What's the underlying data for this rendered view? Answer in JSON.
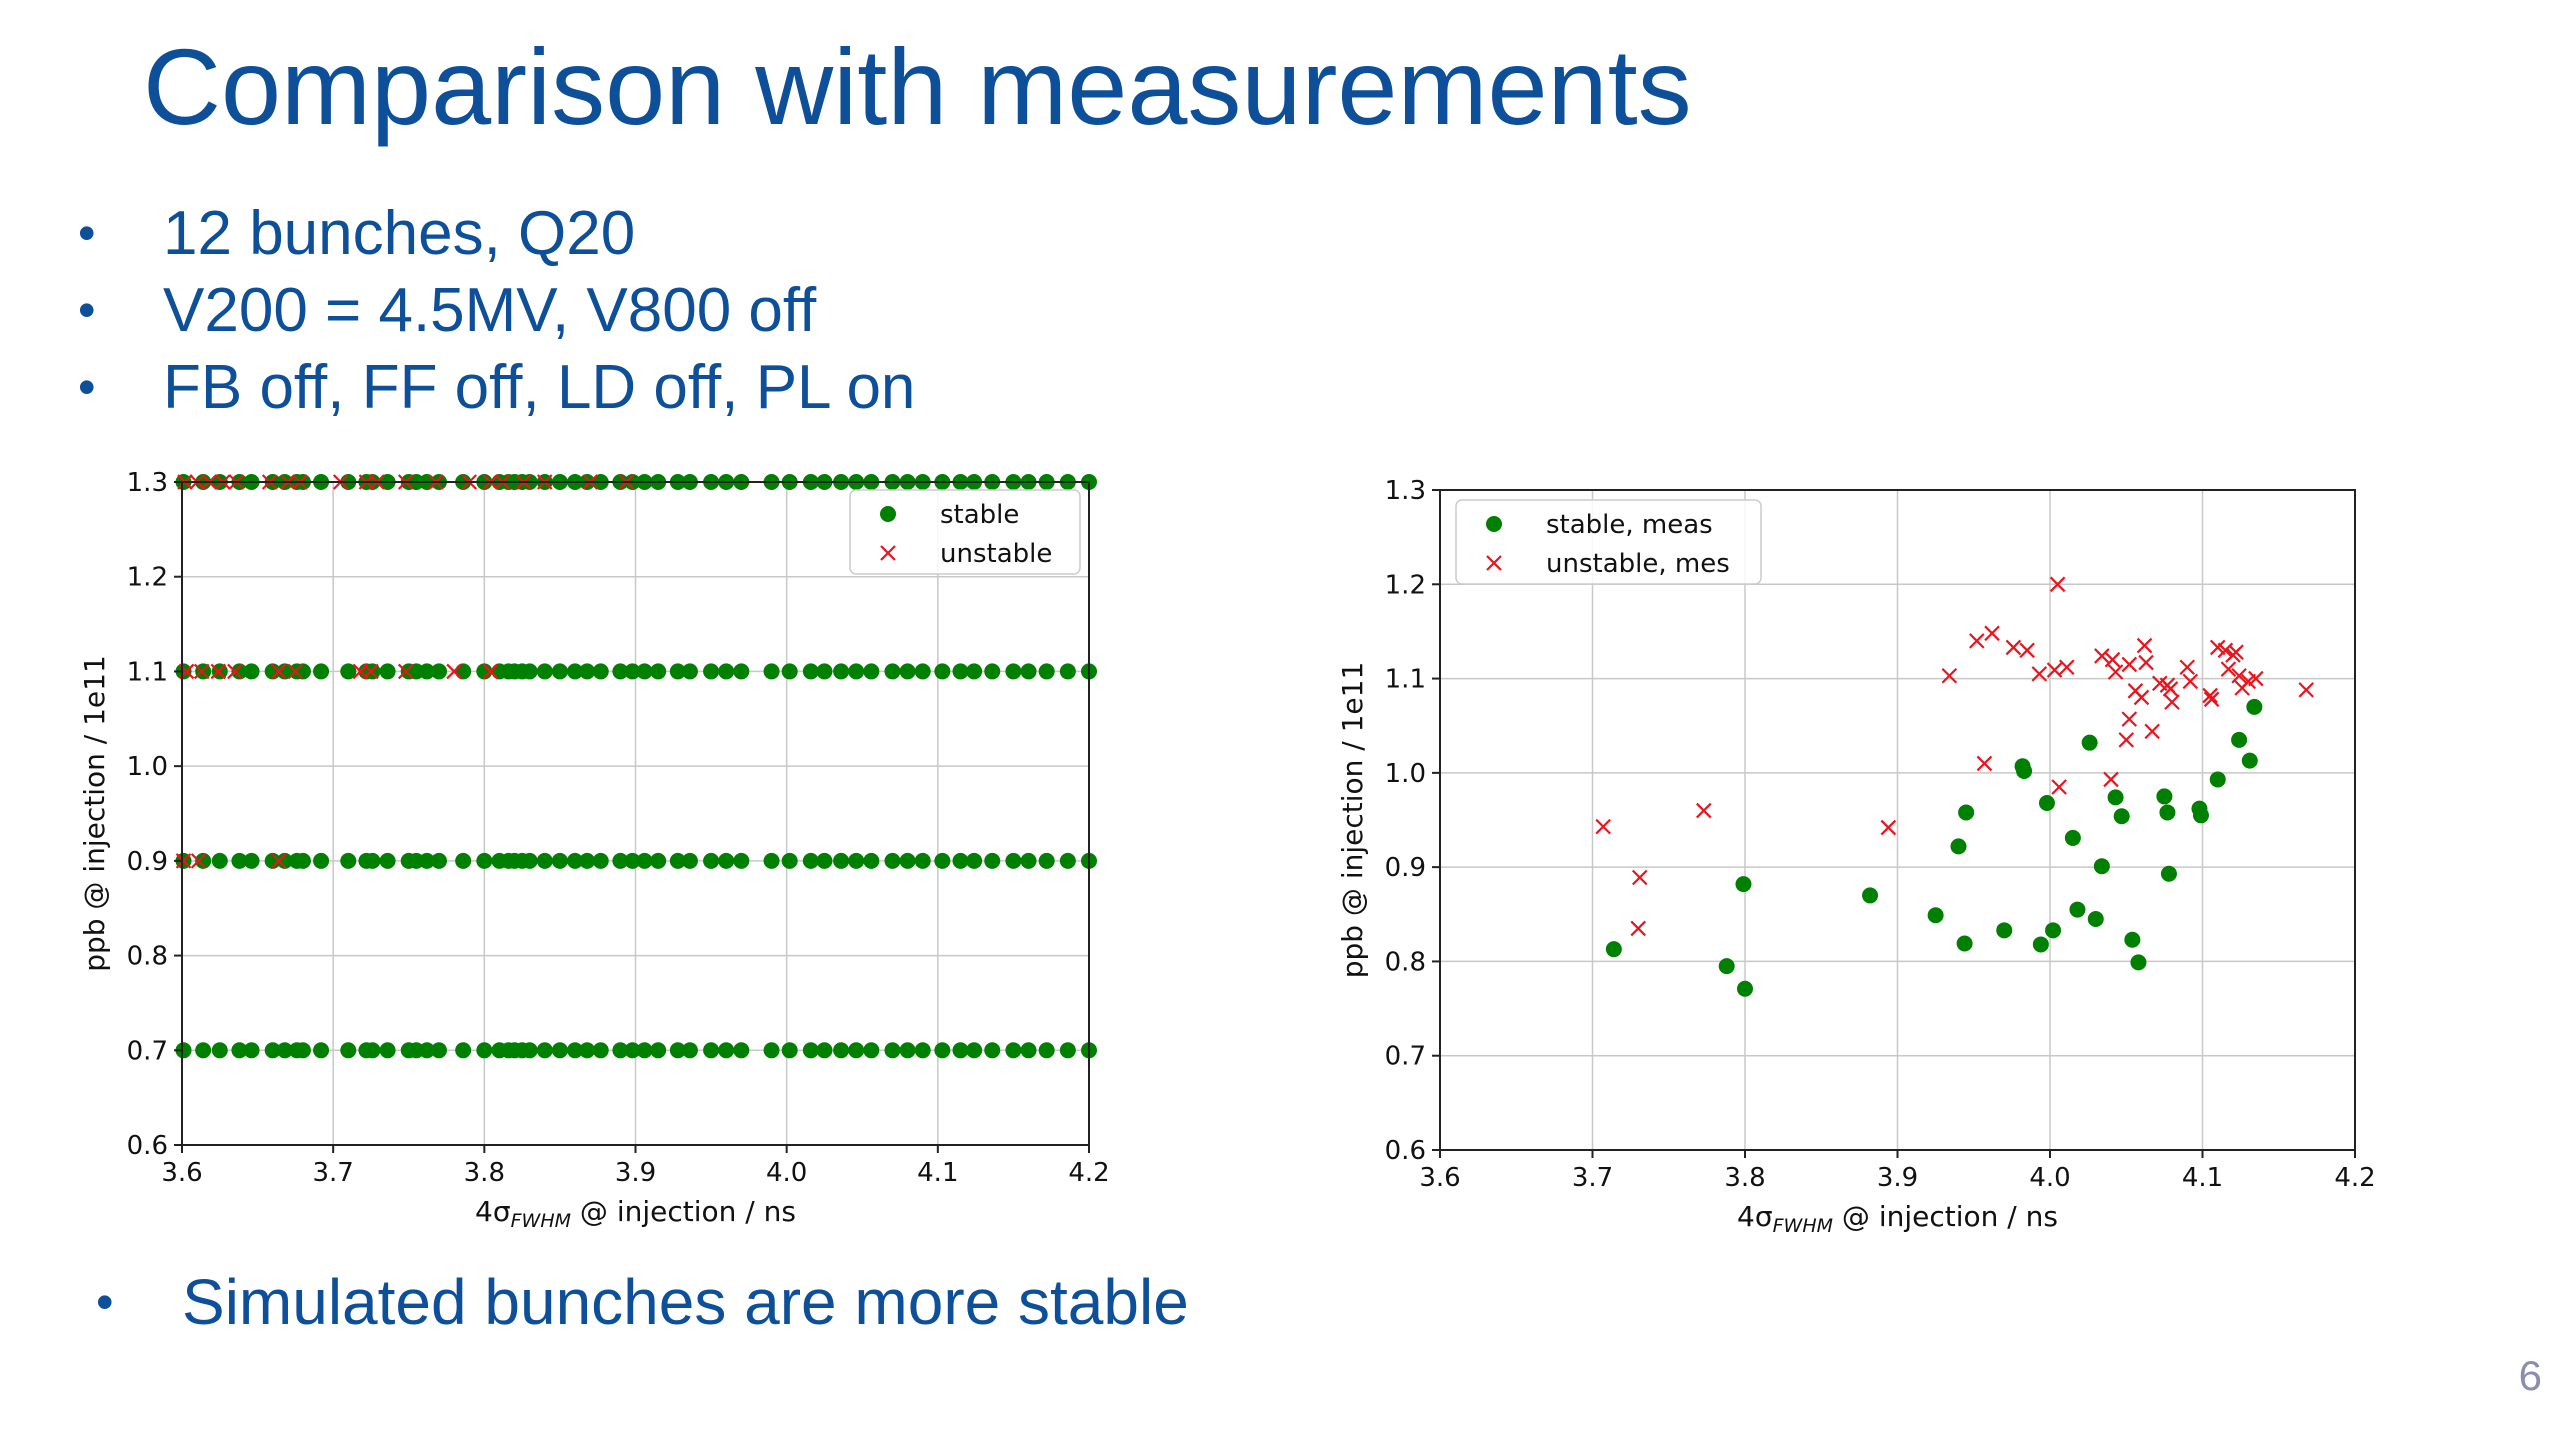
{
  "slide": {
    "title": "Comparison with measurements",
    "bullets": [
      "12 bunches, Q20",
      "V200 = 4.5MV, V800 off",
      "FB off, FF off, LD off, PL on"
    ],
    "bottom_bullet": "Simulated bunches are more stable",
    "page_number": "6",
    "bullet_symbol": "•",
    "title_color": "#0e4f9a"
  },
  "chart_data": [
    {
      "type": "scatter",
      "xlabel": "4σ_FWHM @ injection / ns",
      "ylabel": "ppb @ injection / 1e11",
      "xlim": [
        3.6,
        4.2
      ],
      "ylim": [
        0.6,
        1.3
      ],
      "xticks": [
        "3.6",
        "3.7",
        "3.8",
        "3.9",
        "4.0",
        "4.1",
        "4.2"
      ],
      "yticks": [
        "0.6",
        "0.7",
        "0.8",
        "0.9",
        "1.0",
        "1.1",
        "1.2",
        "1.3"
      ],
      "grid": true,
      "legend_position": "top-right",
      "series": [
        {
          "name": "stable",
          "marker": "circle",
          "color": "#008000",
          "x_values_per_row": [
            3.601,
            3.614,
            3.625,
            3.638,
            3.646,
            3.66,
            3.668,
            3.676,
            3.68,
            3.692,
            3.71,
            3.722,
            3.726,
            3.736,
            3.75,
            3.755,
            3.762,
            3.77,
            3.786,
            3.8,
            3.81,
            3.816,
            3.82,
            3.825,
            3.83,
            3.84,
            3.85,
            3.86,
            3.868,
            3.877,
            3.89,
            3.898,
            3.906,
            3.915,
            3.928,
            3.936,
            3.95,
            3.96,
            3.97,
            3.99,
            4.002,
            4.016,
            4.025,
            4.036,
            4.046,
            4.056,
            4.07,
            4.08,
            4.09,
            4.103,
            4.115,
            4.124,
            4.136,
            4.15,
            4.16,
            4.172,
            4.186,
            4.2
          ],
          "rows_y": [
            0.7,
            0.9,
            1.1,
            1.3
          ]
        },
        {
          "name": "unstable",
          "marker": "x",
          "color": "#e8141e",
          "points": [
            [
              3.601,
              0.9
            ],
            [
              3.611,
              0.9
            ],
            [
              3.664,
              0.9
            ],
            [
              3.603,
              1.1
            ],
            [
              3.613,
              1.1
            ],
            [
              3.624,
              1.1
            ],
            [
              3.635,
              1.1
            ],
            [
              3.664,
              1.1
            ],
            [
              3.675,
              1.1
            ],
            [
              3.718,
              1.1
            ],
            [
              3.725,
              1.1
            ],
            [
              3.748,
              1.1
            ],
            [
              3.78,
              1.1
            ],
            [
              3.804,
              1.1
            ],
            [
              3.602,
              1.3
            ],
            [
              3.61,
              1.3
            ],
            [
              3.618,
              1.3
            ],
            [
              3.627,
              1.3
            ],
            [
              3.636,
              1.3
            ],
            [
              3.658,
              1.3
            ],
            [
              3.67,
              1.3
            ],
            [
              3.678,
              1.3
            ],
            [
              3.705,
              1.3
            ],
            [
              3.722,
              1.3
            ],
            [
              3.729,
              1.3
            ],
            [
              3.748,
              1.3
            ],
            [
              3.768,
              1.3
            ],
            [
              3.79,
              1.3
            ],
            [
              3.804,
              1.3
            ],
            [
              3.812,
              1.3
            ],
            [
              3.826,
              1.3
            ],
            [
              3.84,
              1.3
            ],
            [
              3.87,
              1.3
            ],
            [
              3.894,
              1.3
            ]
          ]
        }
      ]
    },
    {
      "type": "scatter",
      "xlabel": "4σ_FWHM @ injection / ns",
      "ylabel": "ppb @ injection / 1e11",
      "xlim": [
        3.6,
        4.2
      ],
      "ylim": [
        0.6,
        1.3
      ],
      "xticks": [
        "3.6",
        "3.7",
        "3.8",
        "3.9",
        "4.0",
        "4.1",
        "4.2"
      ],
      "yticks": [
        "0.6",
        "0.7",
        "0.8",
        "0.9",
        "1.0",
        "1.1",
        "1.2",
        "1.3"
      ],
      "grid": true,
      "legend_position": "top-left",
      "series": [
        {
          "name": "stable, meas",
          "marker": "circle",
          "color": "#008000",
          "points": [
            [
              3.714,
              0.813
            ],
            [
              3.788,
              0.795
            ],
            [
              3.799,
              0.882
            ],
            [
              3.8,
              0.771
            ],
            [
              3.882,
              0.87
            ],
            [
              3.925,
              0.849
            ],
            [
              3.94,
              0.922
            ],
            [
              3.945,
              0.958
            ],
            [
              3.944,
              0.819
            ],
            [
              3.97,
              0.833
            ],
            [
              3.982,
              1.007
            ],
            [
              3.983,
              1.002
            ],
            [
              3.994,
              0.818
            ],
            [
              3.998,
              0.968
            ],
            [
              4.002,
              0.833
            ],
            [
              4.015,
              0.931
            ],
            [
              4.018,
              0.855
            ],
            [
              4.026,
              1.032
            ],
            [
              4.03,
              0.845
            ],
            [
              4.034,
              0.901
            ],
            [
              4.043,
              0.974
            ],
            [
              4.047,
              0.954
            ],
            [
              4.054,
              0.823
            ],
            [
              4.058,
              0.799
            ],
            [
              4.075,
              0.975
            ],
            [
              4.077,
              0.958
            ],
            [
              4.078,
              0.893
            ],
            [
              4.098,
              0.962
            ],
            [
              4.099,
              0.955
            ],
            [
              4.11,
              0.993
            ],
            [
              4.124,
              1.035
            ],
            [
              4.131,
              1.013
            ],
            [
              4.134,
              1.07
            ]
          ]
        },
        {
          "name": "unstable, mes",
          "marker": "x",
          "color": "#e8141e",
          "points": [
            [
              3.707,
              0.943
            ],
            [
              3.73,
              0.835
            ],
            [
              3.731,
              0.889
            ],
            [
              3.773,
              0.96
            ],
            [
              3.894,
              0.942
            ],
            [
              3.934,
              1.103
            ],
            [
              3.952,
              1.14
            ],
            [
              3.957,
              1.01
            ],
            [
              3.962,
              1.148
            ],
            [
              3.976,
              1.133
            ],
            [
              3.985,
              1.13
            ],
            [
              3.993,
              1.105
            ],
            [
              4.003,
              1.109
            ],
            [
              4.005,
              1.2
            ],
            [
              4.006,
              0.985
            ],
            [
              4.011,
              1.112
            ],
            [
              4.034,
              1.124
            ],
            [
              4.04,
              0.993
            ],
            [
              4.041,
              1.12
            ],
            [
              4.043,
              1.107
            ],
            [
              4.05,
              1.035
            ],
            [
              4.052,
              1.115
            ],
            [
              4.052,
              1.057
            ],
            [
              4.056,
              1.087
            ],
            [
              4.06,
              1.08
            ],
            [
              4.062,
              1.135
            ],
            [
              4.063,
              1.117
            ],
            [
              4.067,
              1.044
            ],
            [
              4.072,
              1.095
            ],
            [
              4.077,
              1.093
            ],
            [
              4.079,
              1.089
            ],
            [
              4.08,
              1.075
            ],
            [
              4.09,
              1.112
            ],
            [
              4.092,
              1.097
            ],
            [
              4.105,
              1.082
            ],
            [
              4.106,
              1.078
            ],
            [
              4.11,
              1.133
            ],
            [
              4.115,
              1.13
            ],
            [
              4.117,
              1.11
            ],
            [
              4.12,
              1.125
            ],
            [
              4.122,
              1.128
            ],
            [
              4.124,
              1.103
            ],
            [
              4.126,
              1.09
            ],
            [
              4.13,
              1.097
            ],
            [
              4.135,
              1.1
            ],
            [
              4.168,
              1.088
            ]
          ]
        }
      ]
    }
  ]
}
